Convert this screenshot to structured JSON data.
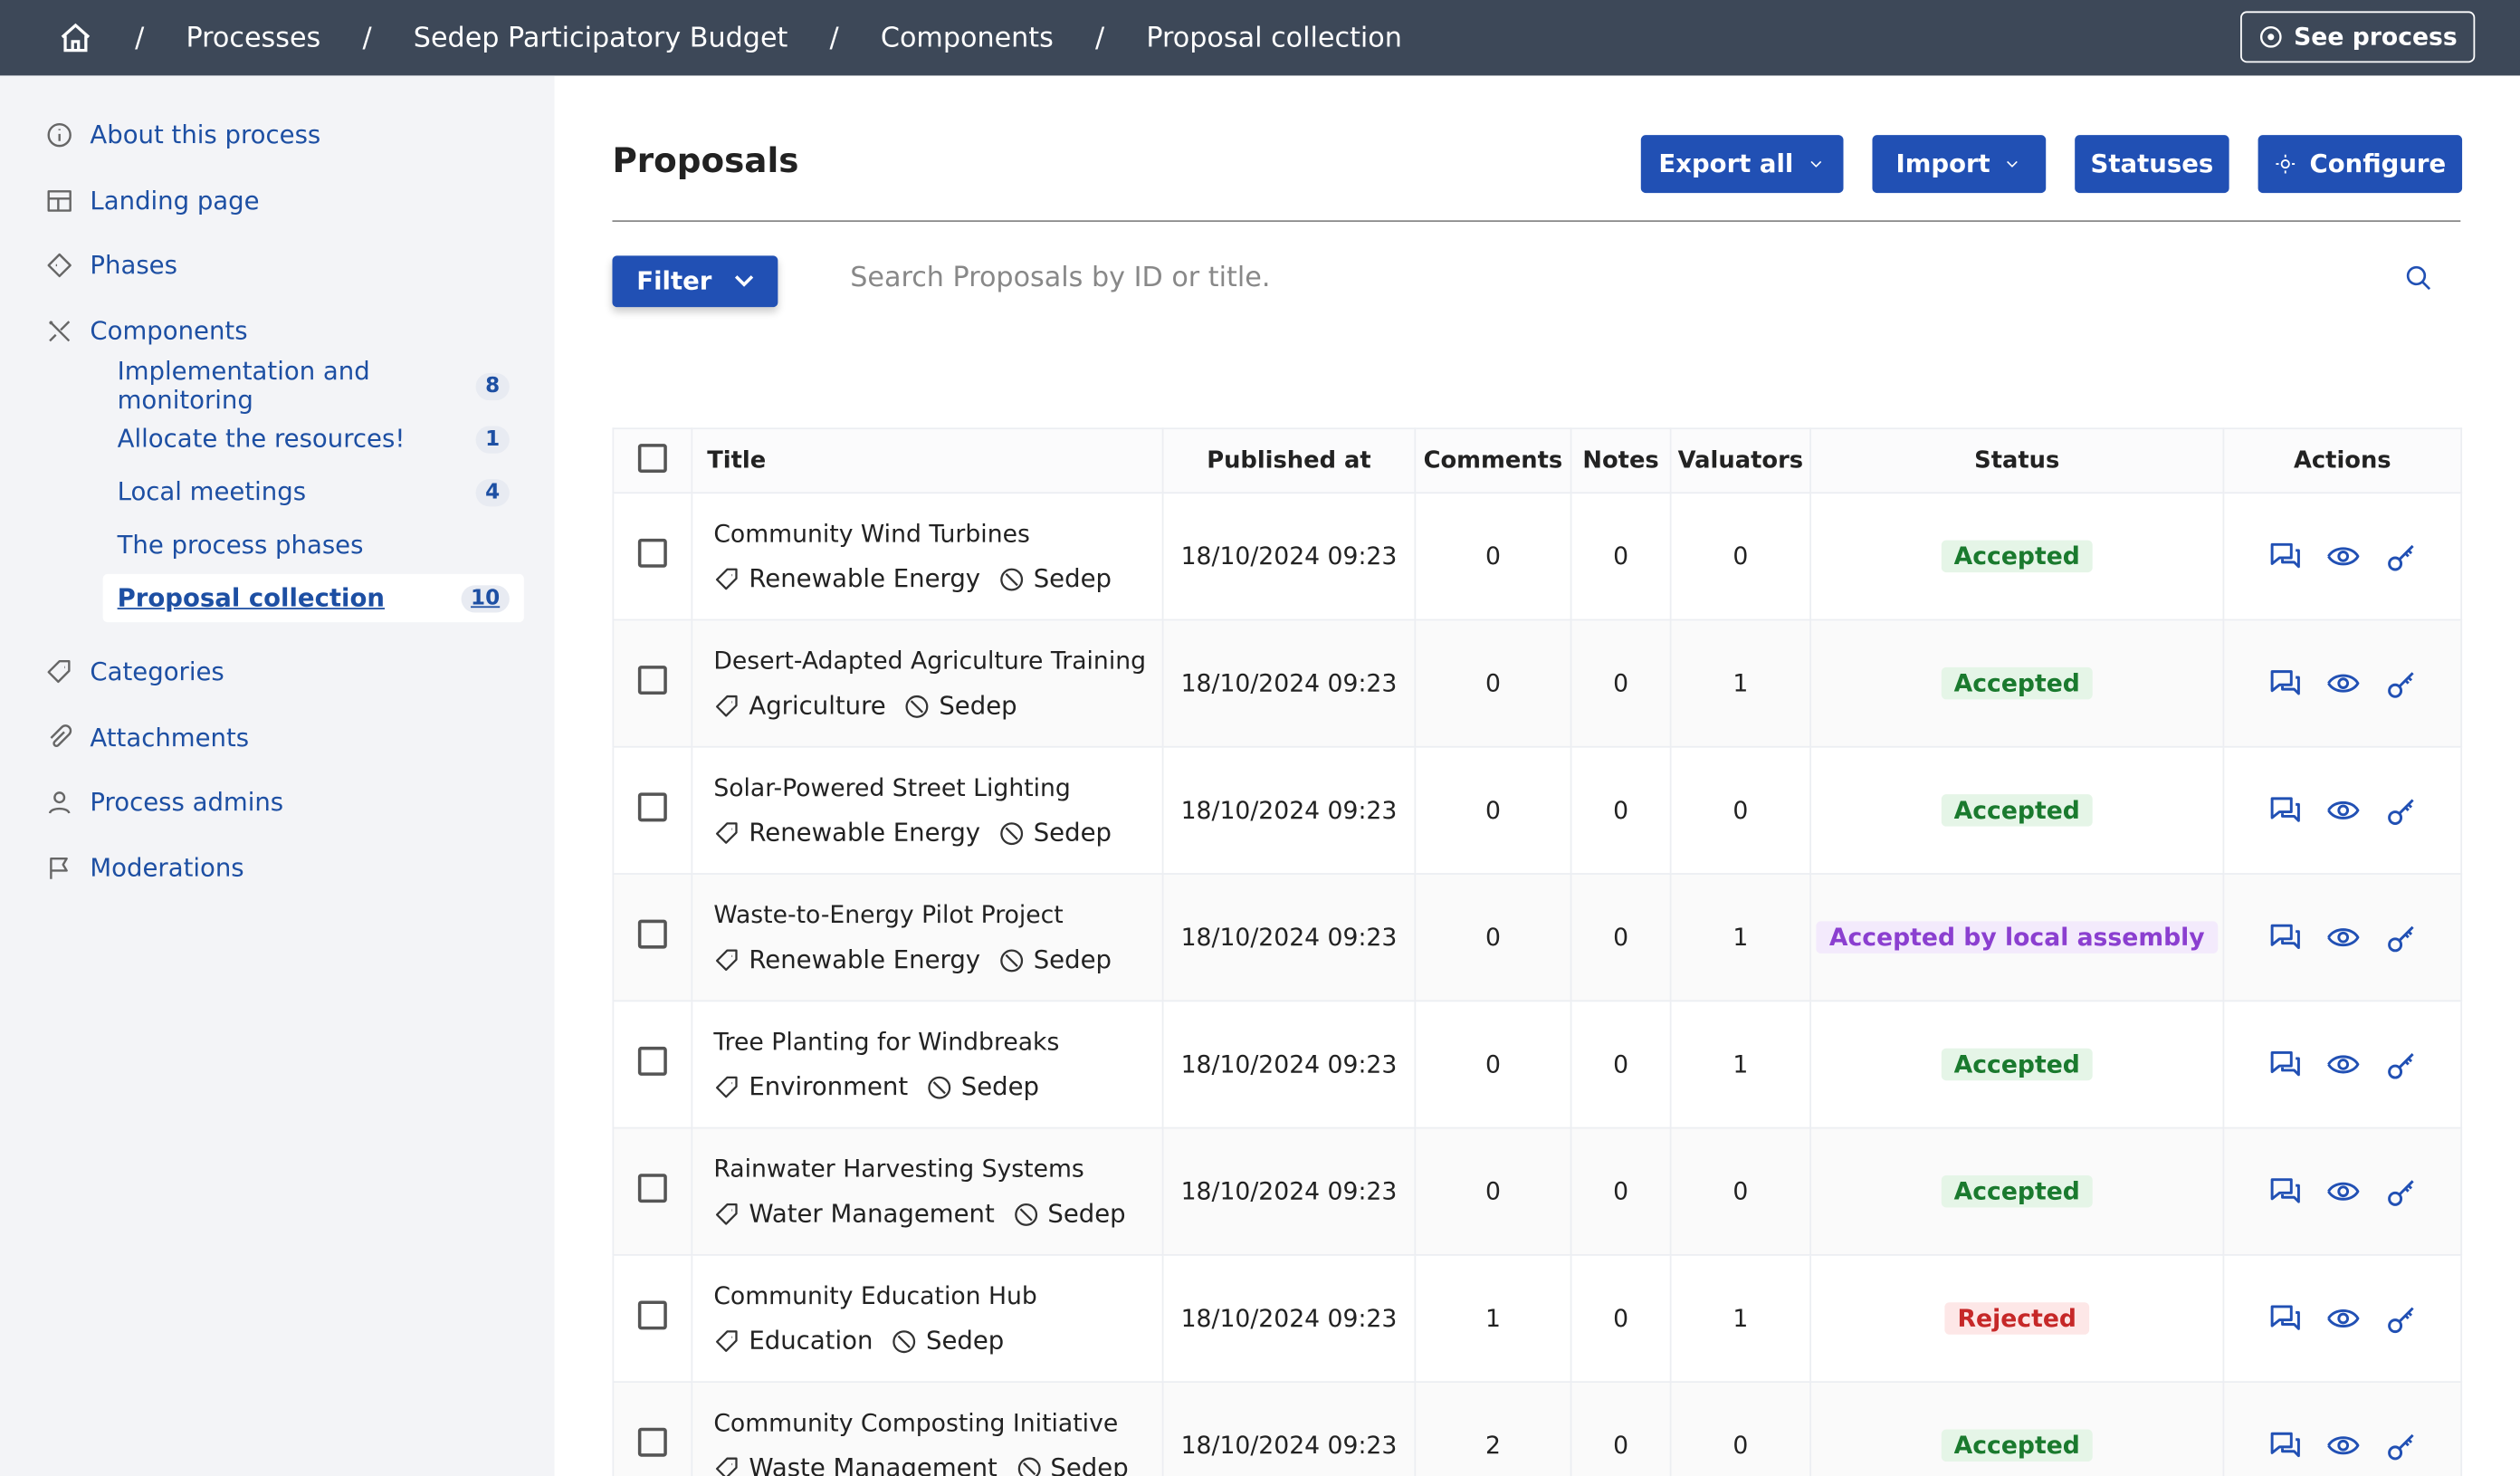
{
  "breadcrumb": [
    "Processes",
    "Sedep Participatory Budget",
    "Components",
    "Proposal collection"
  ],
  "see_process": "See process",
  "sidebar": {
    "items": [
      {
        "label": "About this process",
        "icon": "info"
      },
      {
        "label": "Landing page",
        "icon": "grid"
      },
      {
        "label": "Phases",
        "icon": "diamond"
      },
      {
        "label": "Components",
        "icon": "tools",
        "children": [
          {
            "label": "Implementation and monitoring",
            "count": "8"
          },
          {
            "label": "Allocate the resources!",
            "count": "1"
          },
          {
            "label": "Local meetings",
            "count": "4"
          },
          {
            "label": "The process phases"
          },
          {
            "label": "Proposal collection",
            "count": "10",
            "active": true
          }
        ]
      },
      {
        "label": "Categories",
        "icon": "tag"
      },
      {
        "label": "Attachments",
        "icon": "clip"
      },
      {
        "label": "Process admins",
        "icon": "user"
      },
      {
        "label": "Moderations",
        "icon": "flag"
      }
    ]
  },
  "header": {
    "title": "Proposals",
    "buttons": [
      "Export all",
      "Import",
      "Statuses",
      "Configure"
    ]
  },
  "filter": {
    "button": "Filter",
    "search_placeholder": "Search Proposals by ID or title."
  },
  "table": {
    "columns": [
      "Title",
      "Published at",
      "Comments",
      "Notes",
      "Valuators",
      "Status",
      "Actions"
    ],
    "rows": [
      {
        "title": "Community Wind Turbines",
        "category": "Renewable Energy",
        "scope": "Sedep",
        "published": "18/10/2024 09:23",
        "comments": "0",
        "notes": "0",
        "valuators": "0",
        "status": "Accepted"
      },
      {
        "title": "Desert-Adapted Agriculture Training",
        "category": "Agriculture",
        "scope": "Sedep",
        "published": "18/10/2024 09:23",
        "comments": "0",
        "notes": "0",
        "valuators": "1",
        "status": "Accepted"
      },
      {
        "title": "Solar-Powered Street Lighting",
        "category": "Renewable Energy",
        "scope": "Sedep",
        "published": "18/10/2024 09:23",
        "comments": "0",
        "notes": "0",
        "valuators": "0",
        "status": "Accepted"
      },
      {
        "title": "Waste-to-Energy Pilot Project",
        "category": "Renewable Energy",
        "scope": "Sedep",
        "published": "18/10/2024 09:23",
        "comments": "0",
        "notes": "0",
        "valuators": "1",
        "status": "Accepted by local assembly"
      },
      {
        "title": "Tree Planting for Windbreaks",
        "category": "Environment",
        "scope": "Sedep",
        "published": "18/10/2024 09:23",
        "comments": "0",
        "notes": "0",
        "valuators": "1",
        "status": "Accepted"
      },
      {
        "title": "Rainwater Harvesting Systems",
        "category": "Water Management",
        "scope": "Sedep",
        "published": "18/10/2024 09:23",
        "comments": "0",
        "notes": "0",
        "valuators": "0",
        "status": "Accepted"
      },
      {
        "title": "Community Education Hub",
        "category": "Education",
        "scope": "Sedep",
        "published": "18/10/2024 09:23",
        "comments": "1",
        "notes": "0",
        "valuators": "1",
        "status": "Rejected"
      },
      {
        "title": "Community Composting Initiative",
        "category": "Waste Management",
        "scope": "Sedep",
        "published": "18/10/2024 09:23",
        "comments": "2",
        "notes": "0",
        "valuators": "0",
        "status": "Accepted"
      }
    ]
  }
}
